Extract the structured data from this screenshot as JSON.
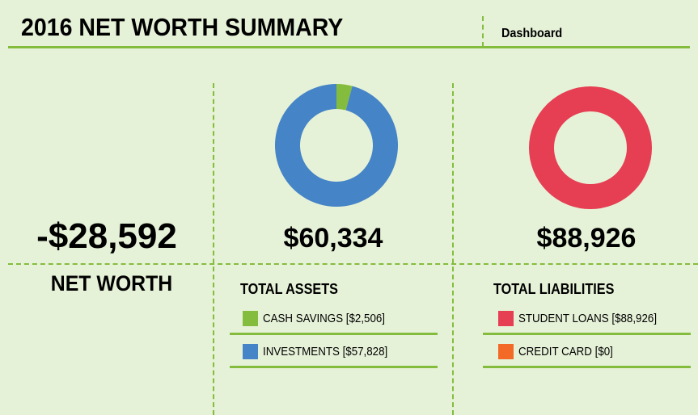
{
  "header": {
    "title": "2016 NET WORTH SUMMARY",
    "tab_label": "Dashboard"
  },
  "colors": {
    "accent": "#84bd3e",
    "background": "#e6f2d8",
    "cash_savings": "#84bd3e",
    "investments": "#4584c6",
    "student_loans": "#e63e52",
    "credit_card": "#f26a26"
  },
  "net_worth": {
    "value": "-$28,592",
    "label": "NET WORTH"
  },
  "assets": {
    "total": "$60,334",
    "title": "TOTAL ASSETS",
    "items": [
      {
        "label": "CASH SAVINGS [$2,506]",
        "name": "Cash Savings",
        "value": 2506,
        "color": "#84bd3e"
      },
      {
        "label": "INVESTMENTS [$57,828]",
        "name": "Investments",
        "value": 57828,
        "color": "#4584c6"
      }
    ]
  },
  "liabilities": {
    "total": "$88,926",
    "title": "TOTAL LIABILITIES",
    "items": [
      {
        "label": "STUDENT LOANS [$88,926]",
        "name": "Student Loans",
        "value": 88926,
        "color": "#e63e52"
      },
      {
        "label": "CREDIT CARD [$0]",
        "name": "Credit Card",
        "value": 0,
        "color": "#f26a26"
      }
    ]
  },
  "chart_data": [
    {
      "type": "pie",
      "title": "Total Assets",
      "categories": [
        "Cash Savings",
        "Investments"
      ],
      "values": [
        2506,
        57828
      ],
      "colors": [
        "#84bd3e",
        "#4584c6"
      ],
      "donut": true
    },
    {
      "type": "pie",
      "title": "Total Liabilities",
      "categories": [
        "Student Loans",
        "Credit Card"
      ],
      "values": [
        88926,
        0
      ],
      "colors": [
        "#e63e52",
        "#f26a26"
      ],
      "donut": true
    }
  ]
}
